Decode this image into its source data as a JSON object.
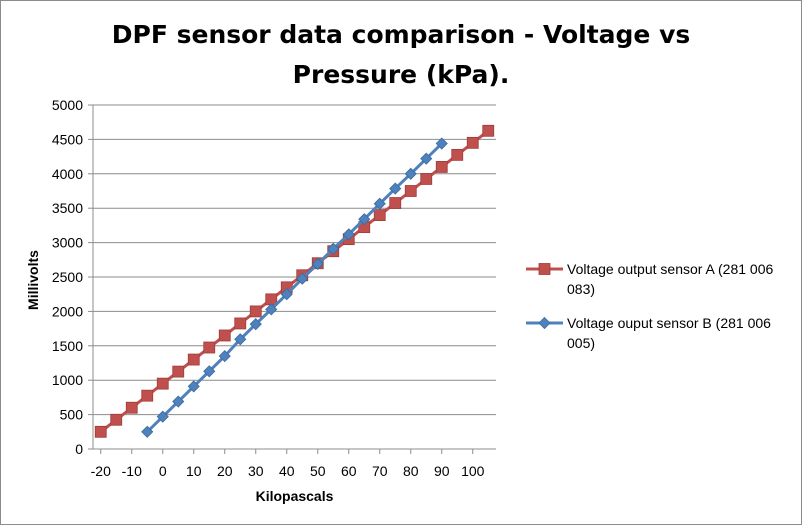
{
  "chart_data": {
    "type": "line",
    "title": "DPF sensor data comparison - Voltage vs Pressure (kPa).",
    "xlabel": "Kilopascals",
    "ylabel": "Millivolts",
    "xlim": [
      -22.5,
      107.5
    ],
    "ylim": [
      0,
      5000
    ],
    "x_ticks": [
      "-20",
      "-10",
      "0",
      "10",
      "20",
      "30",
      "40",
      "50",
      "60",
      "70",
      "80",
      "90",
      "100"
    ],
    "y_ticks": [
      "0",
      "500",
      "1000",
      "1500",
      "2000",
      "2500",
      "3000",
      "3500",
      "4000",
      "4500",
      "5000"
    ],
    "grid": "horizontal",
    "legend_position": "right",
    "series": [
      {
        "name": "Voltage output sensor A (281 006 083)",
        "color": "#c0504d",
        "marker": "square",
        "x": [
          -20,
          -15,
          -10,
          -5,
          0,
          5,
          10,
          15,
          20,
          25,
          30,
          35,
          40,
          45,
          50,
          55,
          60,
          65,
          70,
          75,
          80,
          85,
          90,
          95,
          100,
          105
        ],
        "y": [
          250,
          425,
          600,
          775,
          950,
          1125,
          1300,
          1475,
          1650,
          1825,
          2000,
          2175,
          2350,
          2525,
          2700,
          2875,
          3050,
          3225,
          3400,
          3575,
          3750,
          3925,
          4100,
          4275,
          4450,
          4625
        ]
      },
      {
        "name": "Voltage ouput sensor B (281 006 005)",
        "color": "#4f81bd",
        "marker": "diamond",
        "x": [
          -5,
          0,
          5,
          10,
          15,
          20,
          25,
          30,
          35,
          40,
          45,
          50,
          55,
          60,
          65,
          70,
          75,
          80,
          85,
          90
        ],
        "y": [
          250,
          470,
          690,
          910,
          1130,
          1350,
          1595,
          1815,
          2030,
          2250,
          2475,
          2690,
          2910,
          3120,
          3340,
          3565,
          3785,
          4000,
          4220,
          4440
        ]
      }
    ]
  }
}
